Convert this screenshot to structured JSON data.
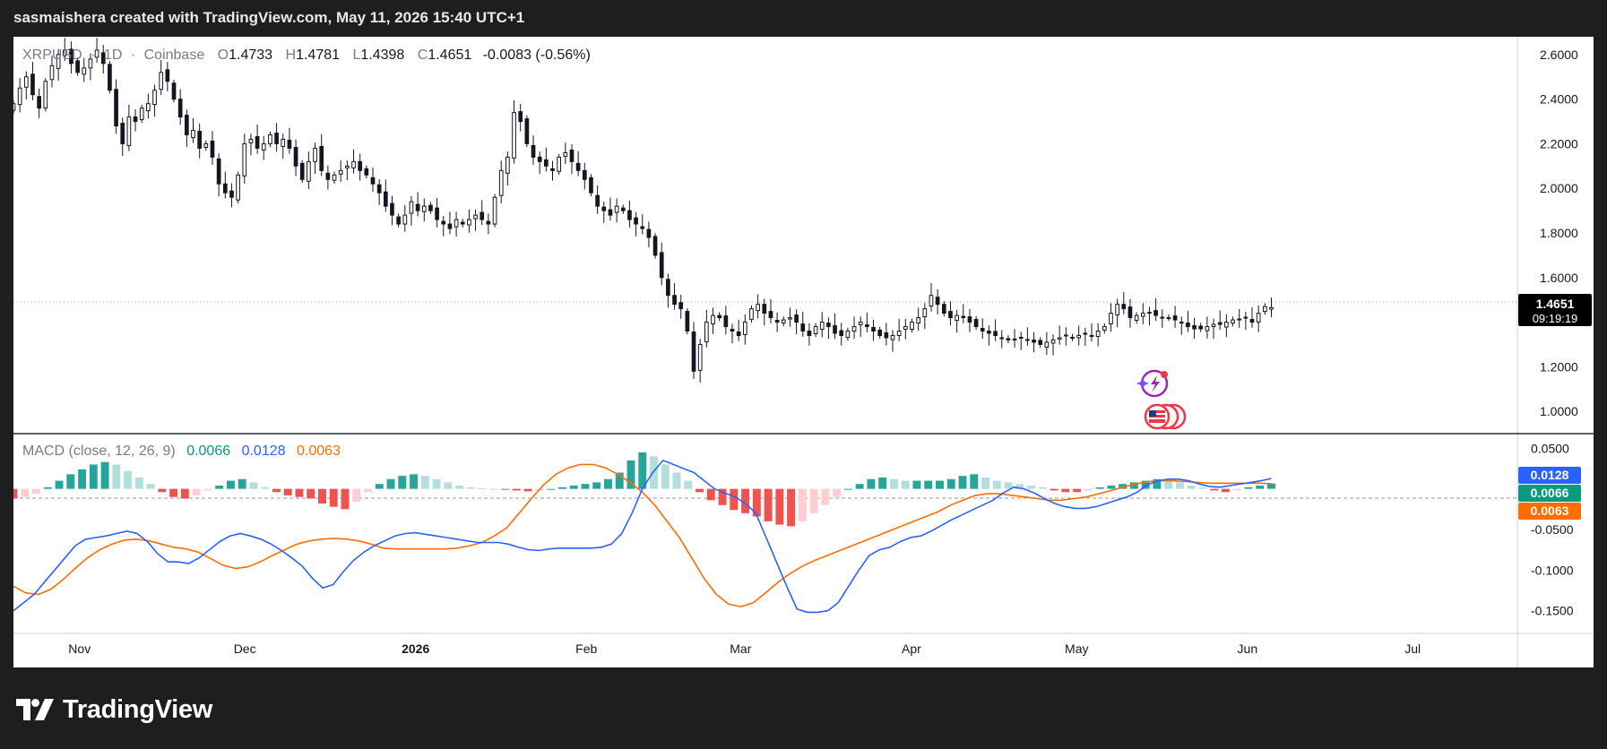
{
  "caption": "sasmaishera created with TradingView.com, May 11, 2026 15:40 UTC+1",
  "brand": {
    "name": "TradingView",
    "logo_icon": "tradingview-logo-icon"
  },
  "legend": {
    "symbol": "XRPUSD",
    "interval": "1D",
    "exchange": "Coinbase",
    "sep": "·",
    "o_label": "O",
    "o": "1.4733",
    "h_label": "H",
    "h": "1.4781",
    "l_label": "L",
    "l": "1.4398",
    "c_label": "C",
    "c": "1.4651",
    "change": "-0.0083 (-0.56%)"
  },
  "macd_legend": {
    "label": "MACD (close, 12, 26, 9)",
    "hist": "0.0066",
    "macd": "0.0128",
    "signal": "0.0063"
  },
  "price_badge": {
    "price": "1.4651",
    "countdown": "09:19:19"
  },
  "macd_badges": {
    "macd": "0.0128",
    "hist": "0.0066",
    "signal": "0.0063"
  },
  "icons": {
    "events": "lightning-event-icon",
    "flags": "us-flag-icon"
  },
  "colors": {
    "up": "#089981",
    "down": "#f23645",
    "macd": "#2962ff",
    "signal": "#ff6d00",
    "hist_up": "#26a69a",
    "hist_up_light": "#b2dfdb",
    "hist_down": "#ef5350",
    "hist_down_light": "#ffcdd2"
  },
  "chart_data": [
    {
      "type": "candlestick",
      "title": "XRPUSD · 1D · Coinbase",
      "y_ticks": [
        "2.6000",
        "2.4000",
        "2.2000",
        "2.0000",
        "1.8000",
        "1.6000",
        "1.2000",
        "1.0000"
      ],
      "y_range": [
        0.9,
        2.68
      ],
      "x_ticks": [
        {
          "label": "Nov",
          "date": "2025-11-01"
        },
        {
          "label": "Dec",
          "date": "2025-12-01"
        },
        {
          "label": "2026",
          "date": "2026-01-01"
        },
        {
          "label": "Feb",
          "date": "2026-02-01"
        },
        {
          "label": "Mar",
          "date": "2026-03-01"
        },
        {
          "label": "Apr",
          "date": "2026-04-01"
        },
        {
          "label": "May",
          "date": "2026-05-01"
        },
        {
          "label": "Jun",
          "date": "2026-06-01"
        },
        {
          "label": "Jul",
          "date": "2026-07-01"
        }
      ],
      "x_range": [
        "2025-10-20",
        "2026-07-20"
      ],
      "last_close": 1.4651,
      "candles_start": "2025-10-20",
      "closes": [
        2.38,
        2.45,
        2.5,
        2.42,
        2.36,
        2.48,
        2.55,
        2.6,
        2.62,
        2.56,
        2.52,
        2.54,
        2.58,
        2.62,
        2.56,
        2.44,
        2.28,
        2.2,
        2.32,
        2.3,
        2.36,
        2.38,
        2.44,
        2.52,
        2.48,
        2.4,
        2.32,
        2.24,
        2.26,
        2.18,
        2.2,
        2.14,
        2.02,
        1.98,
        1.96,
        2.06,
        2.2,
        2.22,
        2.18,
        2.2,
        2.24,
        2.2,
        2.22,
        2.18,
        2.1,
        2.04,
        2.12,
        2.18,
        2.08,
        2.04,
        2.06,
        2.08,
        2.1,
        2.12,
        2.08,
        2.06,
        2.02,
        1.98,
        1.92,
        1.88,
        1.84,
        1.88,
        1.94,
        1.9,
        1.92,
        1.9,
        1.86,
        1.84,
        1.82,
        1.86,
        1.84,
        1.86,
        1.88,
        1.86,
        1.84,
        1.96,
        2.08,
        2.14,
        2.34,
        2.3,
        2.2,
        2.14,
        2.12,
        2.1,
        2.08,
        2.14,
        2.16,
        2.12,
        2.08,
        2.04,
        1.98,
        1.92,
        1.9,
        1.88,
        1.92,
        1.9,
        1.86,
        1.84,
        1.82,
        1.78,
        1.7,
        1.6,
        1.52,
        1.48,
        1.46,
        1.36,
        1.18,
        1.3,
        1.4,
        1.43,
        1.42,
        1.38,
        1.36,
        1.34,
        1.4,
        1.46,
        1.48,
        1.44,
        1.42,
        1.4,
        1.41,
        1.42,
        1.4,
        1.36,
        1.34,
        1.38,
        1.4,
        1.38,
        1.35,
        1.34,
        1.36,
        1.38,
        1.4,
        1.38,
        1.36,
        1.34,
        1.33,
        1.34,
        1.36,
        1.38,
        1.4,
        1.42,
        1.46,
        1.52,
        1.48,
        1.44,
        1.42,
        1.43,
        1.42,
        1.4,
        1.38,
        1.36,
        1.35,
        1.34,
        1.33,
        1.32,
        1.32,
        1.33,
        1.32,
        1.31,
        1.3,
        1.31,
        1.32,
        1.33,
        1.34,
        1.33,
        1.34,
        1.35,
        1.34,
        1.36,
        1.38,
        1.44,
        1.48,
        1.46,
        1.42,
        1.43,
        1.44,
        1.44,
        1.43,
        1.42,
        1.42,
        1.41,
        1.4,
        1.38,
        1.37,
        1.37,
        1.38,
        1.39,
        1.39,
        1.4,
        1.41,
        1.41,
        1.42,
        1.4,
        1.44,
        1.47,
        1.4651
      ],
      "series": [
        {
          "name": "XRPUSD"
        }
      ]
    },
    {
      "type": "line",
      "title": "MACD (close, 12, 26, 9)",
      "y_ticks": [
        "0.0500",
        "-0.0500",
        "-0.1000",
        "-0.1500"
      ],
      "y_range": [
        -0.178,
        0.068
      ],
      "series": [
        {
          "name": "MACD",
          "values": [
            -0.15,
            -0.14,
            -0.13,
            -0.115,
            -0.1,
            -0.085,
            -0.07,
            -0.062,
            -0.06,
            -0.058,
            -0.055,
            -0.052,
            -0.055,
            -0.065,
            -0.08,
            -0.09,
            -0.09,
            -0.092,
            -0.085,
            -0.075,
            -0.065,
            -0.058,
            -0.055,
            -0.058,
            -0.062,
            -0.068,
            -0.076,
            -0.085,
            -0.095,
            -0.11,
            -0.122,
            -0.118,
            -0.102,
            -0.088,
            -0.078,
            -0.07,
            -0.064,
            -0.058,
            -0.055,
            -0.054,
            -0.056,
            -0.058,
            -0.06,
            -0.062,
            -0.064,
            -0.066,
            -0.066,
            -0.066,
            -0.068,
            -0.072,
            -0.075,
            -0.076,
            -0.074,
            -0.073,
            -0.073,
            -0.073,
            -0.073,
            -0.072,
            -0.068,
            -0.055,
            -0.03,
            0.0,
            0.02,
            0.035,
            0.03,
            0.025,
            0.02,
            0.01,
            0.0,
            -0.005,
            -0.01,
            -0.018,
            -0.03,
            -0.06,
            -0.09,
            -0.12,
            -0.148,
            -0.152,
            -0.152,
            -0.15,
            -0.14,
            -0.12,
            -0.1,
            -0.082,
            -0.075,
            -0.072,
            -0.065,
            -0.06,
            -0.058,
            -0.052,
            -0.045,
            -0.038,
            -0.032,
            -0.026,
            -0.02,
            -0.014,
            -0.005,
            0.002,
            0.0,
            -0.005,
            -0.012,
            -0.018,
            -0.022,
            -0.024,
            -0.024,
            -0.022,
            -0.018,
            -0.014,
            -0.01,
            -0.004,
            0.005,
            0.01,
            0.012,
            0.012,
            0.01,
            0.006,
            0.003,
            0.002,
            0.004,
            0.006,
            0.008,
            0.01,
            0.0128
          ]
        },
        {
          "name": "Signal",
          "values": [
            -0.12,
            -0.128,
            -0.13,
            -0.124,
            -0.112,
            -0.098,
            -0.085,
            -0.075,
            -0.068,
            -0.063,
            -0.062,
            -0.064,
            -0.068,
            -0.072,
            -0.074,
            -0.078,
            -0.086,
            -0.094,
            -0.098,
            -0.096,
            -0.09,
            -0.082,
            -0.075,
            -0.068,
            -0.064,
            -0.062,
            -0.061,
            -0.062,
            -0.064,
            -0.068,
            -0.073,
            -0.074,
            -0.074,
            -0.074,
            -0.074,
            -0.074,
            -0.073,
            -0.07,
            -0.066,
            -0.058,
            -0.048,
            -0.03,
            -0.012,
            0.005,
            0.018,
            0.026,
            0.03,
            0.03,
            0.026,
            0.018,
            0.008,
            -0.004,
            -0.02,
            -0.04,
            -0.06,
            -0.085,
            -0.11,
            -0.13,
            -0.142,
            -0.145,
            -0.14,
            -0.128,
            -0.115,
            -0.104,
            -0.095,
            -0.088,
            -0.082,
            -0.076,
            -0.07,
            -0.064,
            -0.058,
            -0.052,
            -0.046,
            -0.04,
            -0.034,
            -0.028,
            -0.02,
            -0.014,
            -0.008,
            -0.006,
            -0.006,
            -0.008,
            -0.01,
            -0.012,
            -0.014,
            -0.014,
            -0.012,
            -0.01,
            -0.006,
            -0.002,
            0.002,
            0.006,
            0.009,
            0.01,
            0.01,
            0.009,
            0.008,
            0.007,
            0.007,
            0.007,
            0.007,
            0.007,
            0.0063
          ]
        },
        {
          "name": "Histogram",
          "values": [
            -0.012,
            -0.01,
            -0.006,
            0.002,
            0.01,
            0.018,
            0.024,
            0.03,
            0.033,
            0.03,
            0.022,
            0.014,
            0.006,
            -0.004,
            -0.01,
            -0.012,
            -0.008,
            -0.002,
            0.004,
            0.01,
            0.012,
            0.008,
            0.002,
            -0.004,
            -0.008,
            -0.01,
            -0.012,
            -0.018,
            -0.022,
            -0.025,
            -0.016,
            -0.004,
            0.006,
            0.012,
            0.016,
            0.018,
            0.016,
            0.012,
            0.008,
            0.004,
            0.002,
            0.001,
            0.0,
            -0.001,
            -0.002,
            -0.003,
            -0.002,
            0.0,
            0.002,
            0.004,
            0.006,
            0.008,
            0.012,
            0.02,
            0.035,
            0.045,
            0.04,
            0.03,
            0.02,
            0.01,
            -0.004,
            -0.014,
            -0.02,
            -0.026,
            -0.03,
            -0.034,
            -0.04,
            -0.044,
            -0.046,
            -0.04,
            -0.03,
            -0.02,
            -0.01,
            0.0,
            0.006,
            0.012,
            0.014,
            0.012,
            0.01,
            0.01,
            0.01,
            0.01,
            0.012,
            0.016,
            0.018,
            0.014,
            0.01,
            0.008,
            0.006,
            0.004,
            0.002,
            -0.002,
            -0.004,
            -0.004,
            -0.002,
            0.002,
            0.004,
            0.006,
            0.008,
            0.01,
            0.012,
            0.01,
            0.008,
            0.004,
            0.002,
            -0.002,
            -0.004,
            -0.002,
            0.002,
            0.004,
            0.0066
          ]
        }
      ]
    }
  ]
}
